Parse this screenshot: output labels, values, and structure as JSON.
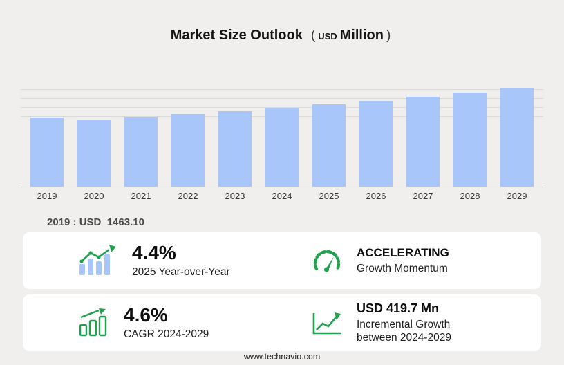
{
  "colors": {
    "background": "#f0efed",
    "bar": "#a8c6f9",
    "green": "#1ea24d"
  },
  "title": {
    "main": "Market Size Outlook",
    "unit_prefix": "(",
    "unit_currency": "USD",
    "unit_scale": "Million",
    "unit_suffix": ")"
  },
  "chart_data": {
    "type": "bar",
    "title": "Market Size Outlook (USD Million)",
    "unit": "USD Million",
    "categories": [
      "2019",
      "2020",
      "2021",
      "2022",
      "2023",
      "2024",
      "2025",
      "2026",
      "2027",
      "2028",
      "2029"
    ],
    "values": [
      1463.1,
      1428,
      1477,
      1537,
      1603,
      1666,
      1739,
      1818,
      1903,
      1992,
      2086
    ],
    "ylim": [
      0,
      2200
    ],
    "grid": "horizontal",
    "legend": "none",
    "note_2019_label": "2019 : USD  1463.10"
  },
  "stats": {
    "yoy": {
      "value": "4.4%",
      "label": "2025 Year-over-Year"
    },
    "momentum": {
      "title": "ACCELERATING",
      "label": "Growth Momentum"
    },
    "cagr": {
      "value": "4.6%",
      "label": "CAGR 2024-2029"
    },
    "incremental": {
      "value": "USD 419.7 Mn",
      "label_line1": "Incremental Growth",
      "label_line2": "between 2024-2029"
    }
  },
  "footer": {
    "url": "www.technavio.com"
  }
}
